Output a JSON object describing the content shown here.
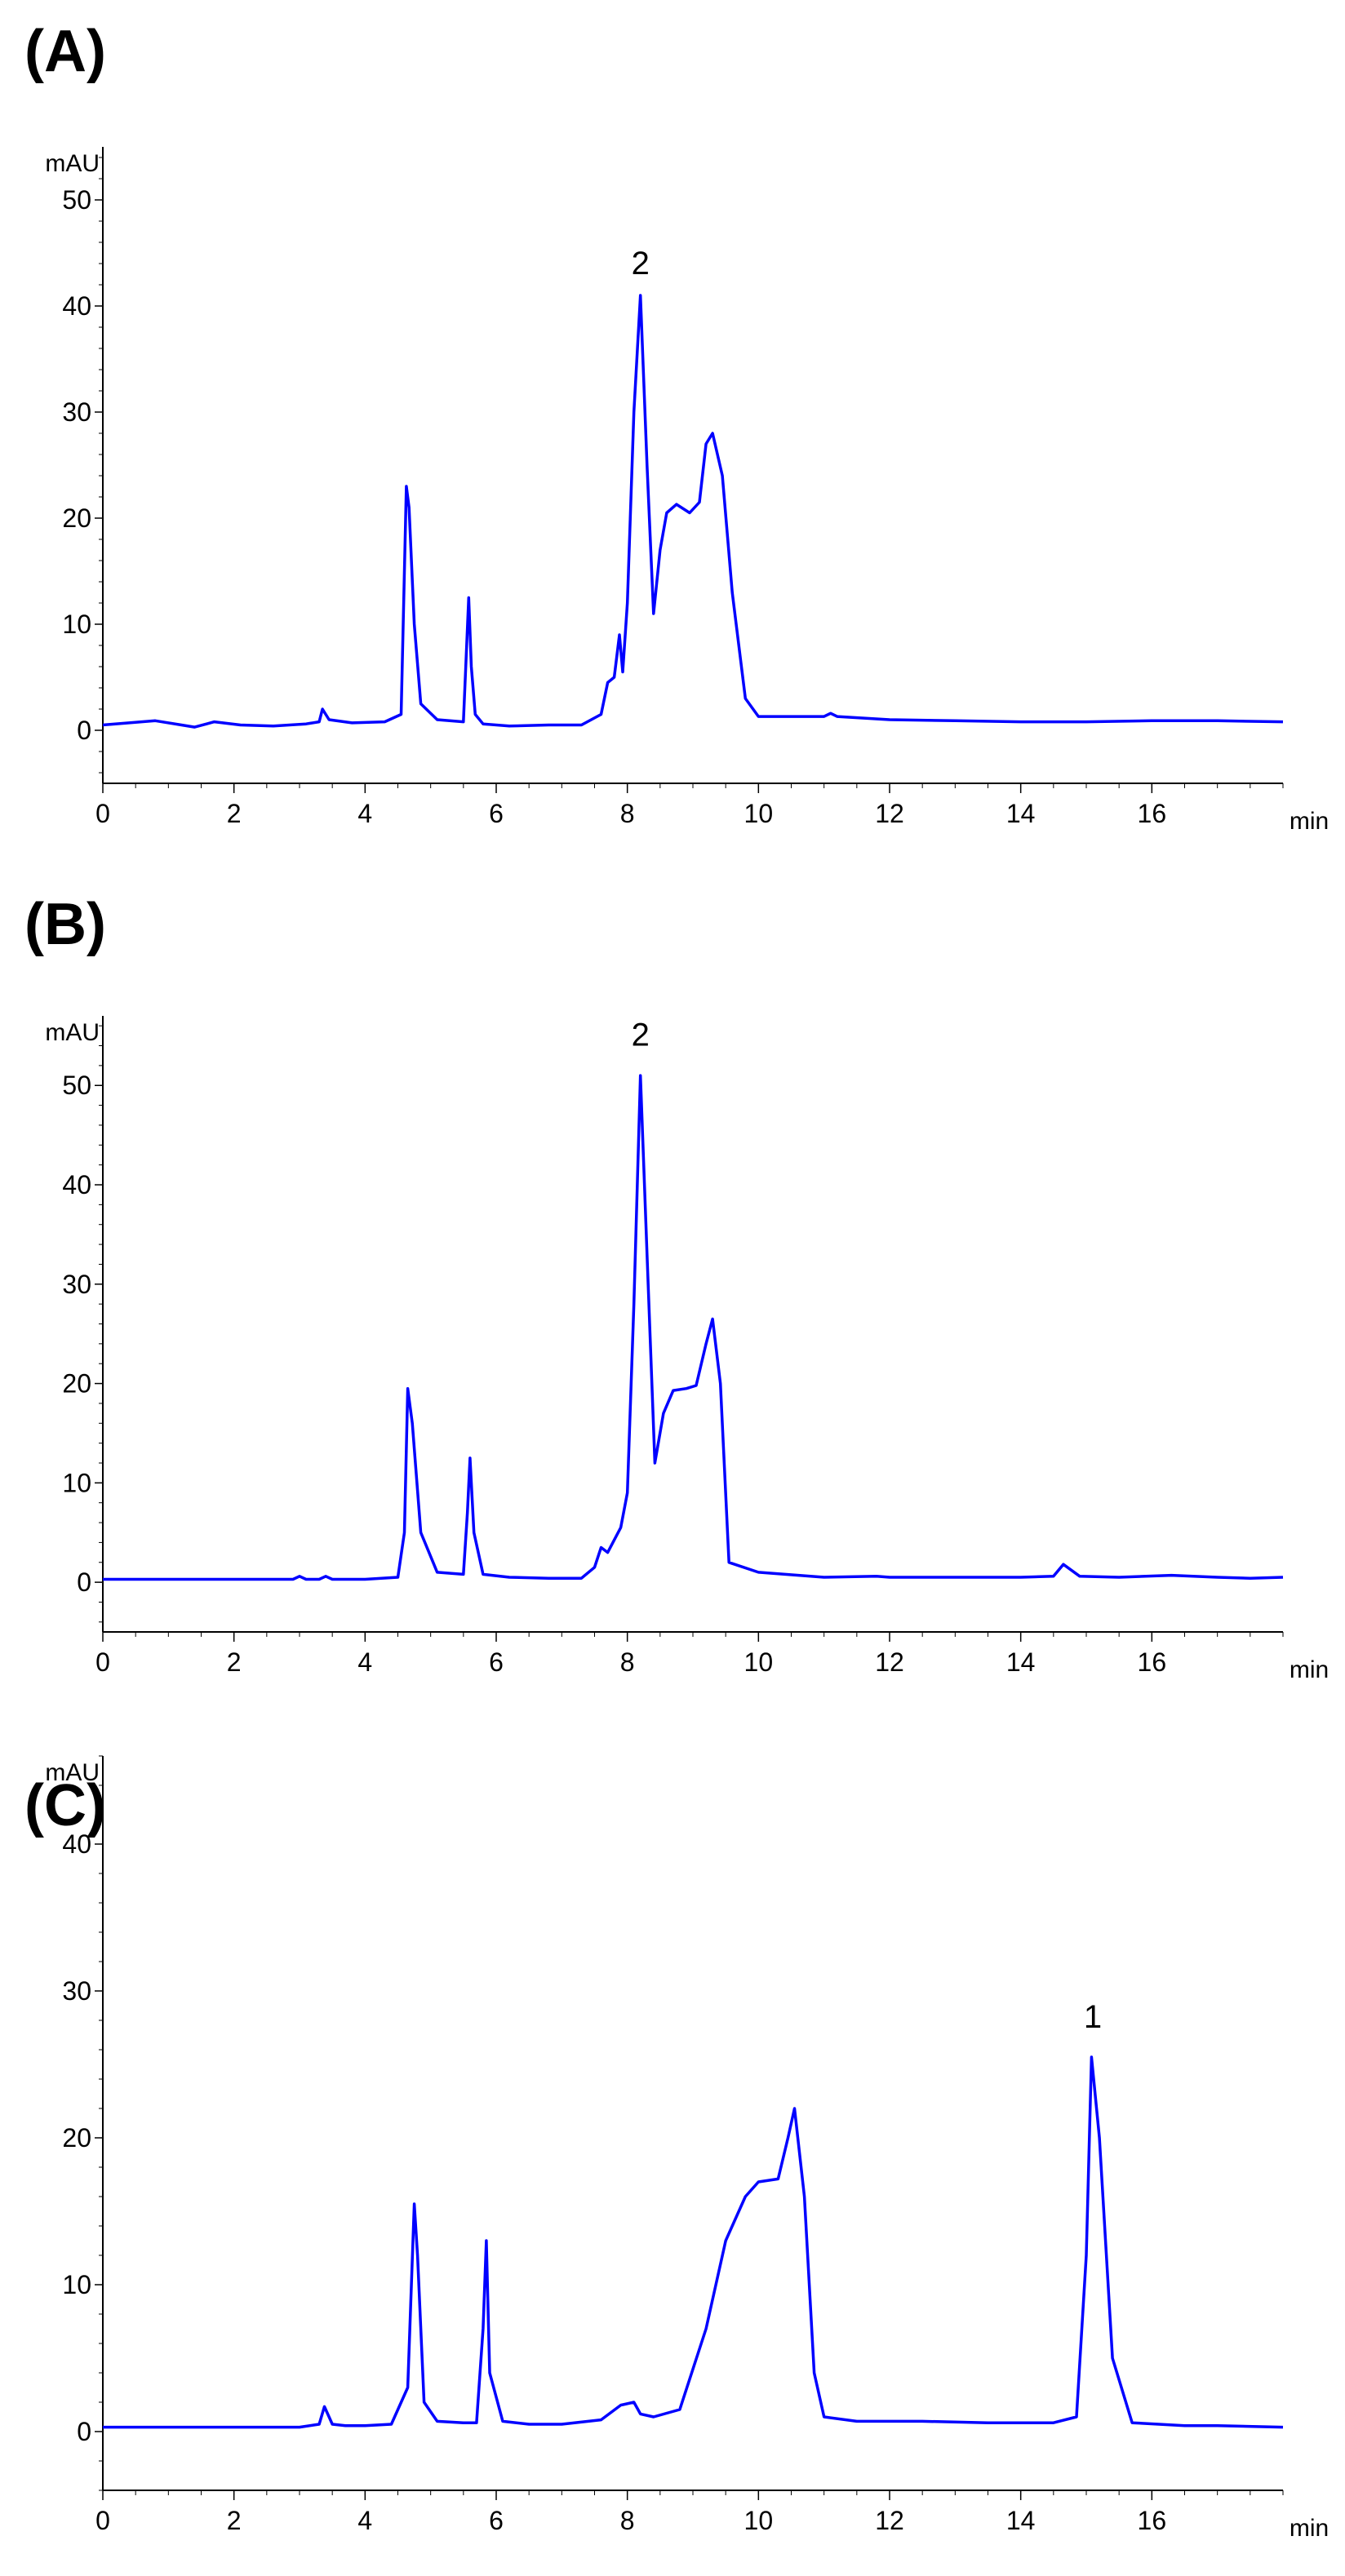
{
  "panels": [
    {
      "label": "(A)"
    },
    {
      "label": "(B)"
    },
    {
      "label": "(C)"
    }
  ],
  "chart_data": [
    {
      "type": "line",
      "panel": "(A)",
      "ylabel": "mAU",
      "xlabel": "min",
      "xlim": [
        0,
        18
      ],
      "ylim": [
        -5,
        55
      ],
      "xticks": [
        "0",
        "2",
        "4",
        "6",
        "8",
        "10",
        "12",
        "14",
        "16"
      ],
      "yticks": [
        "0",
        "10",
        "20",
        "30",
        "40",
        "50"
      ],
      "line_color": "#0000ff",
      "annotations": [
        {
          "text": "2",
          "x": 8.2,
          "y": 43
        }
      ],
      "series": [
        {
          "x": [
            0,
            0.4,
            0.8,
            1.2,
            1.4,
            1.7,
            2.1,
            2.6,
            3.1,
            3.3,
            3.35,
            3.45,
            3.8,
            4.3,
            4.55,
            4.63,
            4.67,
            4.75,
            4.85,
            5.1,
            5.5,
            5.58,
            5.62,
            5.68,
            5.8,
            6.2,
            6.8,
            7.3,
            7.6,
            7.7,
            7.8,
            7.88,
            7.93,
            8.0,
            8.1,
            8.2,
            8.3,
            8.4,
            8.5,
            8.6,
            8.75,
            8.95,
            9.1,
            9.2,
            9.3,
            9.45,
            9.6,
            9.8,
            10.0,
            10.4,
            11.0,
            11.1,
            11.2,
            12.0,
            13.0,
            14.0,
            15.0,
            16.0,
            17.0,
            18.0
          ],
          "y": [
            0.5,
            0.7,
            0.9,
            0.5,
            0.3,
            0.8,
            0.5,
            0.4,
            0.6,
            0.8,
            2.0,
            1.0,
            0.7,
            0.8,
            1.5,
            23,
            21,
            10,
            2.5,
            1.0,
            0.8,
            12.5,
            6,
            1.5,
            0.6,
            0.4,
            0.5,
            0.5,
            1.5,
            4.5,
            5.0,
            9.0,
            5.5,
            12,
            30,
            41,
            25,
            11,
            17,
            20.5,
            21.3,
            20.5,
            21.5,
            27,
            28,
            24,
            13,
            3,
            1.3,
            1.3,
            1.3,
            1.6,
            1.3,
            1.0,
            0.9,
            0.8,
            0.8,
            0.9,
            0.9,
            0.8
          ]
        }
      ]
    },
    {
      "type": "line",
      "panel": "(B)",
      "ylabel": "mAU",
      "xlabel": "min",
      "xlim": [
        0,
        18
      ],
      "ylim": [
        -5,
        57
      ],
      "xticks": [
        "0",
        "2",
        "4",
        "6",
        "8",
        "10",
        "12",
        "14",
        "16"
      ],
      "yticks": [
        "0",
        "10",
        "20",
        "30",
        "40",
        "50"
      ],
      "line_color": "#0000ff",
      "annotations": [
        {
          "text": "2",
          "x": 8.2,
          "y": 54
        }
      ],
      "series": [
        {
          "x": [
            0,
            1.0,
            2.0,
            2.9,
            3.0,
            3.1,
            3.3,
            3.4,
            3.5,
            4.0,
            4.5,
            4.6,
            4.65,
            4.72,
            4.85,
            5.1,
            5.5,
            5.56,
            5.6,
            5.66,
            5.8,
            6.2,
            6.8,
            7.3,
            7.5,
            7.6,
            7.7,
            7.9,
            8.0,
            8.1,
            8.2,
            8.3,
            8.42,
            8.55,
            8.7,
            8.9,
            9.05,
            9.2,
            9.3,
            9.42,
            9.55,
            10.0,
            11.0,
            11.8,
            12.0,
            13.0,
            14.0,
            14.5,
            14.65,
            14.9,
            15.5,
            16.3,
            17.0,
            17.5,
            18.0
          ],
          "y": [
            0.3,
            0.3,
            0.3,
            0.3,
            0.6,
            0.3,
            0.3,
            0.6,
            0.3,
            0.3,
            0.5,
            5,
            19.5,
            16,
            5,
            1.0,
            0.8,
            7,
            12.5,
            5,
            0.8,
            0.5,
            0.4,
            0.4,
            1.5,
            3.5,
            3.0,
            5.5,
            9,
            28,
            51,
            33,
            12,
            17,
            19.3,
            19.5,
            19.8,
            24,
            26.5,
            20,
            2,
            1.0,
            0.5,
            0.6,
            0.5,
            0.5,
            0.5,
            0.6,
            1.8,
            0.6,
            0.5,
            0.7,
            0.5,
            0.4,
            0.5
          ]
        }
      ]
    },
    {
      "type": "line",
      "panel": "(C)",
      "ylabel": "mAU",
      "xlabel": "min",
      "xlim": [
        0,
        18
      ],
      "ylim": [
        -4,
        46
      ],
      "xticks": [
        "0",
        "2",
        "4",
        "6",
        "8",
        "10",
        "12",
        "14",
        "16"
      ],
      "yticks": [
        "0",
        "10",
        "20",
        "30",
        "40"
      ],
      "line_color": "#0000ff",
      "annotations": [
        {
          "text": "1",
          "x": 15.1,
          "y": 27.5
        }
      ],
      "series": [
        {
          "x": [
            0,
            1.0,
            2.0,
            3.0,
            3.3,
            3.38,
            3.5,
            3.7,
            4.0,
            4.4,
            4.65,
            4.75,
            4.8,
            4.9,
            5.1,
            5.5,
            5.7,
            5.8,
            5.85,
            5.9,
            6.1,
            6.5,
            7.0,
            7.6,
            7.9,
            8.1,
            8.2,
            8.4,
            8.8,
            9.2,
            9.5,
            9.8,
            10.0,
            10.3,
            10.45,
            10.55,
            10.7,
            10.85,
            11.0,
            11.5,
            12.5,
            13.5,
            14.5,
            14.85,
            15.0,
            15.08,
            15.2,
            15.4,
            15.7,
            16.5,
            17.0,
            18.0
          ],
          "y": [
            0.3,
            0.3,
            0.3,
            0.3,
            0.5,
            1.7,
            0.5,
            0.4,
            0.4,
            0.5,
            3,
            15.5,
            12,
            2.0,
            0.7,
            0.6,
            0.6,
            7,
            13,
            4,
            0.7,
            0.5,
            0.5,
            0.8,
            1.8,
            2.0,
            1.2,
            1.0,
            1.5,
            7,
            13,
            16,
            17,
            17.2,
            20,
            22,
            16,
            4,
            1.0,
            0.7,
            0.7,
            0.6,
            0.6,
            1.0,
            12,
            25.5,
            20,
            5,
            0.6,
            0.4,
            0.4,
            0.3
          ]
        }
      ]
    }
  ]
}
